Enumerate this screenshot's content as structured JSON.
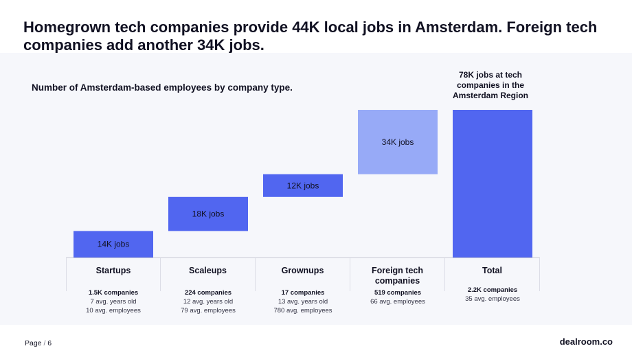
{
  "headline": "Homegrown tech companies provide 44K local jobs in Amsterdam. Foreign tech companies add another 34K jobs.",
  "subtitle": "Number of Amsterdam-based employees by company type.",
  "total_note": "78K jobs at tech companies in the Amsterdam Region",
  "colors": {
    "bar": "#5166f0",
    "foreign_bar": "#97aaf7",
    "panel_bg": "#f6f7fb"
  },
  "chart_data": {
    "type": "bar",
    "variant": "waterfall",
    "title": "Number of Amsterdam-based employees by company type.",
    "categories": [
      "Startups",
      "Scaleups",
      "Grownups",
      "Foreign tech companies",
      "Total"
    ],
    "values": [
      14,
      18,
      12,
      34,
      78
    ],
    "unit": "K jobs",
    "bar_labels": [
      "14K jobs",
      "18K jobs",
      "12K jobs",
      "34K jobs",
      ""
    ],
    "ylim": [
      0,
      78
    ],
    "grid": false
  },
  "categories": [
    {
      "label": "Startups",
      "companies": "1.5K companies",
      "lines": [
        "7 avg. years old",
        "10 avg.  employees"
      ]
    },
    {
      "label": "Scaleups",
      "companies": "224 companies",
      "lines": [
        "12 avg. years old",
        "79 avg. employees"
      ]
    },
    {
      "label": "Grownups",
      "companies": "17 companies",
      "lines": [
        "13 avg. years old",
        "780 avg. employees"
      ]
    },
    {
      "label": "Foreign tech companies",
      "companies": "519 companies",
      "lines": [
        "66 avg. employees"
      ]
    },
    {
      "label": "Total",
      "companies": "2.2K companies",
      "lines": [
        "35 avg. employees"
      ]
    }
  ],
  "footer": {
    "page_label": "Page",
    "page_number": "6",
    "brand": "dealroom.co"
  }
}
